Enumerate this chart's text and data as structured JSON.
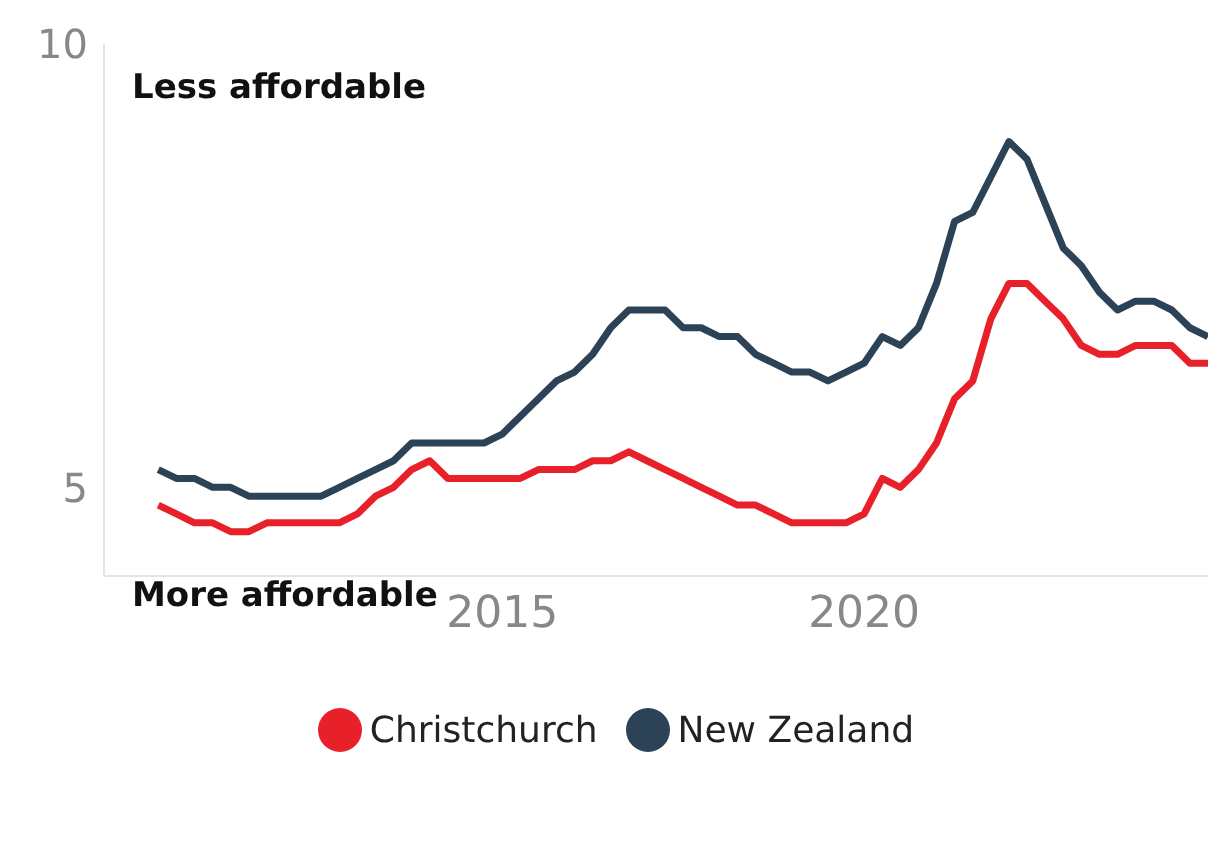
{
  "chart_data": {
    "type": "line",
    "x": [
      2010.25,
      2010.5,
      2010.75,
      2011,
      2011.25,
      2011.5,
      2011.75,
      2012,
      2012.25,
      2012.5,
      2012.75,
      2013,
      2013.25,
      2013.5,
      2013.75,
      2014,
      2014.25,
      2014.5,
      2014.75,
      2015,
      2015.25,
      2015.5,
      2015.75,
      2016,
      2016.25,
      2016.5,
      2016.75,
      2017,
      2017.25,
      2017.5,
      2017.75,
      2018,
      2018.25,
      2018.5,
      2018.75,
      2019,
      2019.25,
      2019.5,
      2019.75,
      2020,
      2020.25,
      2020.5,
      2020.75,
      2021,
      2021.25,
      2021.5,
      2021.75,
      2022,
      2022.25,
      2022.5,
      2022.75,
      2023,
      2023.25,
      2023.5,
      2023.75,
      2024,
      2024.25,
      2024.5,
      2024.75
    ],
    "series": [
      {
        "name": "Christchurch",
        "color": "#e8202a",
        "values": [
          4.8,
          4.7,
          4.6,
          4.6,
          4.5,
          4.5,
          4.6,
          4.6,
          4.6,
          4.6,
          4.6,
          4.7,
          4.9,
          5.0,
          5.2,
          5.3,
          5.1,
          5.1,
          5.1,
          5.1,
          5.1,
          5.2,
          5.2,
          5.2,
          5.3,
          5.3,
          5.4,
          5.3,
          5.2,
          5.1,
          5.0,
          4.9,
          4.8,
          4.8,
          4.7,
          4.6,
          4.6,
          4.6,
          4.6,
          4.7,
          5.1,
          5.0,
          5.2,
          5.5,
          6.0,
          6.2,
          6.9,
          7.3,
          7.3,
          7.1,
          6.9,
          6.6,
          6.5,
          6.5,
          6.6,
          6.6,
          6.6,
          6.4,
          6.4
        ]
      },
      {
        "name": "New Zealand",
        "color": "#2b4257",
        "values": [
          5.2,
          5.1,
          5.1,
          5.0,
          5.0,
          4.9,
          4.9,
          4.9,
          4.9,
          4.9,
          5.0,
          5.1,
          5.2,
          5.3,
          5.5,
          5.5,
          5.5,
          5.5,
          5.5,
          5.6,
          5.8,
          6.0,
          6.2,
          6.3,
          6.5,
          6.8,
          7.0,
          7.0,
          7.0,
          6.8,
          6.8,
          6.7,
          6.7,
          6.5,
          6.4,
          6.3,
          6.3,
          6.2,
          6.3,
          6.4,
          6.7,
          6.6,
          6.8,
          7.3,
          8.0,
          8.1,
          8.5,
          8.9,
          8.7,
          8.2,
          7.7,
          7.5,
          7.2,
          7.0,
          7.1,
          7.1,
          7.0,
          6.8,
          6.7
        ]
      }
    ],
    "xlim": [
      2009.5,
      2024.75
    ],
    "xticks": [
      2015,
      2020
    ],
    "ylim": [
      4,
      10
    ],
    "yticks": [
      5,
      10
    ],
    "grid": false,
    "legend": "bottom",
    "marker": "none",
    "line_style": "solid",
    "annotations": [
      "Less affordable",
      "More affordable"
    ]
  }
}
